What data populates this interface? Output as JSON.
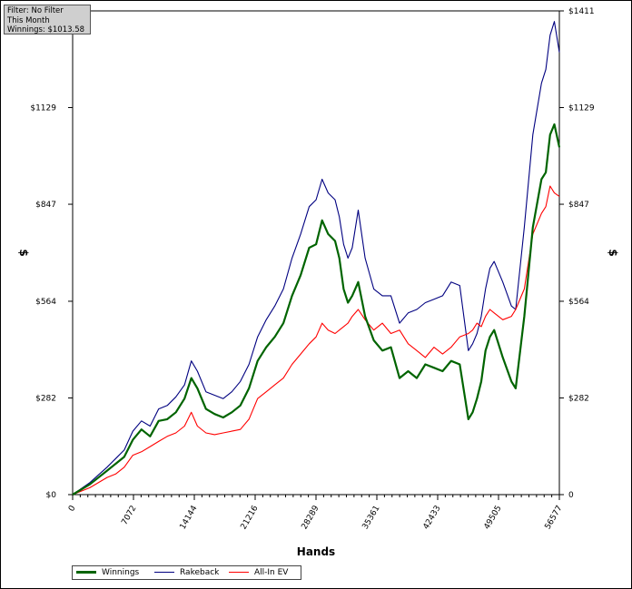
{
  "info_box": {
    "line1": "Filter: No Filter",
    "line2": "This Month",
    "line3": "Winnings: $1013.58"
  },
  "chart_data": {
    "type": "line",
    "xlabel": "Hands",
    "ylabel": "$",
    "xlim": [
      0,
      56577
    ],
    "ylim": [
      0,
      1411
    ],
    "x_ticks": [
      "0",
      "7072",
      "14144",
      "21216",
      "28289",
      "35361",
      "42433",
      "49505",
      "56577"
    ],
    "y_ticks": [
      "$0",
      "$282",
      "$564",
      "$847",
      "$1129",
      "$1411"
    ],
    "y_ticks_right": [
      "0",
      "$282",
      "$564",
      "$847",
      "$1129",
      "$1411"
    ],
    "grid": true,
    "legend_position": "bottom-left",
    "series": [
      {
        "name": "Winnings",
        "color": "#006400",
        "x": [
          0,
          2000,
          4000,
          5000,
          6000,
          7000,
          8000,
          9000,
          10000,
          11000,
          12000,
          13000,
          13800,
          14500,
          15500,
          16500,
          17500,
          18500,
          19500,
          20500,
          21500,
          22500,
          23500,
          24500,
          25500,
          26500,
          27500,
          28300,
          29000,
          29700,
          30500,
          31000,
          31500,
          32000,
          32500,
          33200,
          34000,
          35000,
          36000,
          37000,
          38000,
          39000,
          40000,
          41000,
          42000,
          43000,
          44000,
          45000,
          46000,
          46500,
          47000,
          47500,
          48000,
          48500,
          49000,
          50000,
          51000,
          51500,
          52500,
          53500,
          54500,
          55000,
          55500,
          56000,
          56577
        ],
        "values": [
          0,
          30,
          70,
          90,
          110,
          160,
          190,
          170,
          215,
          220,
          240,
          280,
          340,
          310,
          250,
          235,
          225,
          240,
          260,
          310,
          390,
          430,
          460,
          500,
          580,
          640,
          720,
          730,
          800,
          760,
          740,
          690,
          600,
          560,
          580,
          620,
          520,
          450,
          420,
          430,
          340,
          360,
          340,
          380,
          370,
          360,
          390,
          380,
          220,
          240,
          280,
          330,
          420,
          460,
          480,
          400,
          330,
          310,
          520,
          780,
          920,
          940,
          1050,
          1080,
          1013
        ]
      },
      {
        "name": "Rakeback",
        "color": "#000080",
        "x": [
          0,
          2000,
          4000,
          5000,
          6000,
          7000,
          8000,
          9000,
          10000,
          11000,
          12000,
          13000,
          13800,
          14500,
          15500,
          16500,
          17500,
          18500,
          19500,
          20500,
          21500,
          22500,
          23500,
          24500,
          25500,
          26500,
          27500,
          28300,
          29000,
          29700,
          30500,
          31000,
          31500,
          32000,
          32500,
          33200,
          34000,
          35000,
          36000,
          37000,
          38000,
          39000,
          40000,
          41000,
          42000,
          43000,
          44000,
          45000,
          46000,
          46500,
          47000,
          47500,
          48000,
          48500,
          49000,
          50000,
          51000,
          51500,
          52500,
          53500,
          54500,
          55000,
          55500,
          56000,
          56577
        ],
        "values": [
          0,
          35,
          80,
          105,
          130,
          185,
          215,
          200,
          250,
          260,
          285,
          320,
          390,
          360,
          300,
          290,
          280,
          300,
          330,
          380,
          460,
          510,
          550,
          600,
          690,
          760,
          840,
          860,
          920,
          880,
          860,
          810,
          730,
          690,
          720,
          830,
          690,
          600,
          580,
          580,
          500,
          530,
          540,
          560,
          570,
          580,
          620,
          610,
          420,
          440,
          470,
          520,
          600,
          660,
          680,
          620,
          550,
          540,
          780,
          1050,
          1200,
          1240,
          1340,
          1380,
          1290
        ]
      },
      {
        "name": "All-In EV",
        "color": "#ff0000",
        "x": [
          0,
          2000,
          4000,
          5000,
          6000,
          7000,
          8000,
          9000,
          10000,
          11000,
          12000,
          13000,
          13800,
          14500,
          15500,
          16500,
          17500,
          18500,
          19500,
          20500,
          21500,
          22500,
          23500,
          24500,
          25500,
          26500,
          27500,
          28300,
          29000,
          29700,
          30500,
          31000,
          31500,
          32000,
          32500,
          33200,
          34000,
          35000,
          36000,
          37000,
          38000,
          39000,
          40000,
          41000,
          42000,
          43000,
          44000,
          45000,
          46000,
          46500,
          47000,
          47500,
          48000,
          48500,
          49000,
          50000,
          51000,
          51500,
          52500,
          53500,
          54500,
          55000,
          55500,
          56000,
          56577
        ],
        "values": [
          0,
          20,
          50,
          60,
          80,
          115,
          125,
          140,
          155,
          170,
          180,
          200,
          240,
          200,
          180,
          175,
          180,
          185,
          190,
          220,
          280,
          300,
          320,
          340,
          380,
          410,
          440,
          460,
          500,
          480,
          470,
          480,
          490,
          500,
          520,
          540,
          510,
          480,
          500,
          470,
          480,
          440,
          420,
          400,
          430,
          410,
          430,
          460,
          470,
          480,
          500,
          490,
          520,
          540,
          530,
          510,
          520,
          540,
          600,
          760,
          820,
          840,
          900,
          880,
          870
        ]
      }
    ]
  }
}
